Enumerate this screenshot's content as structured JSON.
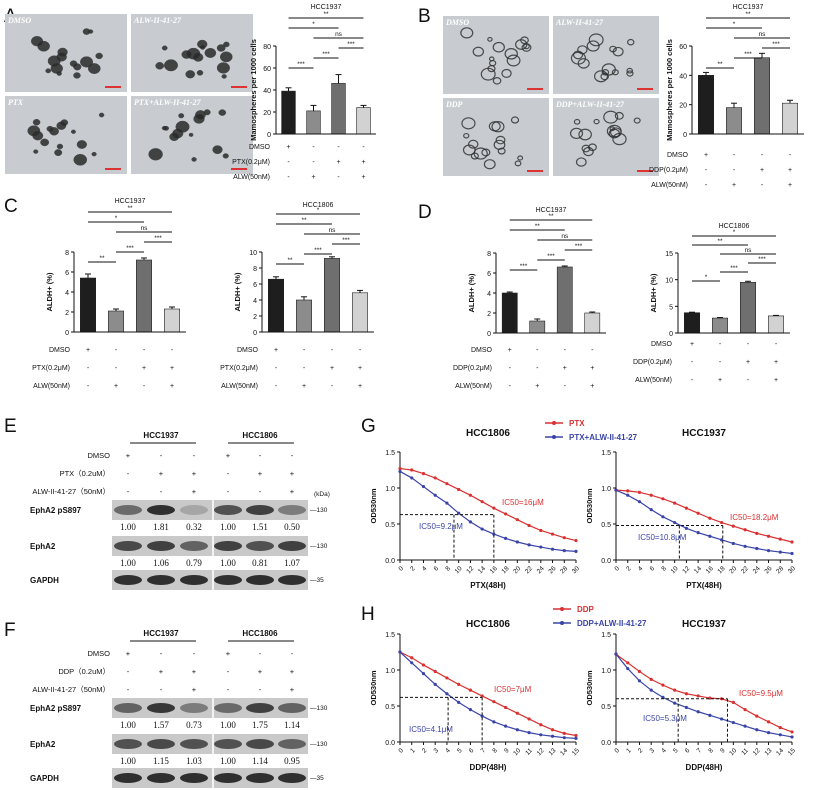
{
  "colors": {
    "dmso": "#1e1e1e",
    "alw": "#8c8c8c",
    "drug": "#6f6f6f",
    "combo": "#d2d2d2",
    "red": "#d93030",
    "blue": "#3a44a8",
    "micro_bg": "#c8ccd0"
  },
  "panel_letters": [
    "A",
    "B",
    "C",
    "D",
    "E",
    "F",
    "G",
    "H"
  ],
  "panelA": {
    "images": [
      {
        "label": "DMSO"
      },
      {
        "label": "ALW-II-41-27"
      },
      {
        "label": "PTX"
      },
      {
        "label": "PTX+ALW-II-41-27"
      }
    ],
    "chart_data": {
      "type": "bar",
      "title": "HCC1937",
      "ylabel": "Mamospheres per 1000 cells",
      "ylim": [
        0,
        80
      ],
      "yticks": [
        "0",
        "20",
        "40",
        "60",
        "80"
      ],
      "categories": [
        "DMSO",
        "ALW",
        "PTX",
        "PTX+ALW"
      ],
      "values": [
        39,
        21,
        46,
        24
      ],
      "errors": [
        3,
        5,
        8,
        2
      ],
      "rows": [
        {
          "label": "DMSO",
          "marks": [
            "+",
            "-",
            "-",
            "-"
          ]
        },
        {
          "label": "PTX(0.2μM)",
          "marks": [
            "-",
            "-",
            "+",
            "+"
          ]
        },
        {
          "label": "ALW(50nM)",
          "marks": [
            "-",
            "+",
            "-",
            "+"
          ]
        }
      ],
      "sig": [
        {
          "a": 0,
          "b": 3,
          "text": "**"
        },
        {
          "a": 0,
          "b": 2,
          "text": "*"
        },
        {
          "a": 1,
          "b": 3,
          "text": "ns"
        },
        {
          "a": 2,
          "b": 3,
          "text": "***"
        },
        {
          "a": 1,
          "b": 2,
          "text": "***"
        },
        {
          "a": 0,
          "b": 1,
          "text": "***"
        }
      ]
    }
  },
  "panelB": {
    "images": [
      {
        "label": "DMSO"
      },
      {
        "label": "ALW-II-41-27"
      },
      {
        "label": "DDP"
      },
      {
        "label": "DDP+ALW-II-41-27"
      }
    ],
    "chart_data": {
      "type": "bar",
      "title": "HCC1937",
      "ylabel": "Mamospheres per 1000 cells",
      "ylim": [
        0,
        60
      ],
      "yticks": [
        "0",
        "20",
        "40",
        "60"
      ],
      "categories": [
        "DMSO",
        "ALW",
        "DDP",
        "DDP+ALW"
      ],
      "values": [
        40,
        18,
        52,
        21
      ],
      "errors": [
        2,
        3,
        3,
        2
      ],
      "rows": [
        {
          "label": "DMSO",
          "marks": [
            "+",
            "-",
            "-",
            "-"
          ]
        },
        {
          "label": "DDP(0.2μM)",
          "marks": [
            "-",
            "-",
            "+",
            "+"
          ]
        },
        {
          "label": "ALW(50nM)",
          "marks": [
            "-",
            "+",
            "-",
            "+"
          ]
        }
      ],
      "sig": [
        {
          "a": 0,
          "b": 3,
          "text": "**"
        },
        {
          "a": 0,
          "b": 2,
          "text": "*"
        },
        {
          "a": 1,
          "b": 3,
          "text": "ns"
        },
        {
          "a": 2,
          "b": 3,
          "text": "***"
        },
        {
          "a": 1,
          "b": 2,
          "text": "***"
        },
        {
          "a": 0,
          "b": 1,
          "text": "**"
        }
      ]
    }
  },
  "panelC": [
    {
      "type": "bar",
      "title": "HCC1937",
      "ylabel": "ALDH+ (%)",
      "ylim": [
        0,
        8
      ],
      "yticks": [
        "0",
        "2",
        "4",
        "6",
        "8"
      ],
      "categories": [
        "DMSO",
        "ALW",
        "PTX",
        "PTX+ALW"
      ],
      "values": [
        5.4,
        2.1,
        7.2,
        2.3
      ],
      "errors": [
        0.4,
        0.2,
        0.2,
        0.2
      ],
      "rows": [
        {
          "label": "DMSO",
          "marks": [
            "+",
            "-",
            "-",
            "-"
          ]
        },
        {
          "label": "PTX(0.2μM)",
          "marks": [
            "-",
            "-",
            "+",
            "+"
          ]
        },
        {
          "label": "ALW(50nM)",
          "marks": [
            "-",
            "+",
            "-",
            "+"
          ]
        }
      ],
      "sig": [
        {
          "a": 0,
          "b": 3,
          "text": "**"
        },
        {
          "a": 0,
          "b": 2,
          "text": "*"
        },
        {
          "a": 1,
          "b": 3,
          "text": "ns"
        },
        {
          "a": 2,
          "b": 3,
          "text": "***"
        },
        {
          "a": 1,
          "b": 2,
          "text": "***"
        },
        {
          "a": 0,
          "b": 1,
          "text": "**"
        }
      ]
    },
    {
      "type": "bar",
      "title": "HCC1806",
      "ylabel": "ALDH+ (%)",
      "ylim": [
        0,
        10
      ],
      "yticks": [
        "0",
        "2",
        "4",
        "6",
        "8",
        "10"
      ],
      "categories": [
        "DMSO",
        "ALW",
        "PTX",
        "PTX+ALW"
      ],
      "values": [
        6.6,
        4.0,
        9.2,
        4.9
      ],
      "errors": [
        0.3,
        0.4,
        0.2,
        0.3
      ],
      "rows": [
        {
          "label": "DMSO",
          "marks": [
            "+",
            "-",
            "-",
            "-"
          ]
        },
        {
          "label": "PTX(0.2μM)",
          "marks": [
            "-",
            "-",
            "+",
            "+"
          ]
        },
        {
          "label": "ALW(50nM)",
          "marks": [
            "-",
            "+",
            "-",
            "+"
          ]
        }
      ],
      "sig": [
        {
          "a": 0,
          "b": 3,
          "text": "*"
        },
        {
          "a": 0,
          "b": 2,
          "text": "**"
        },
        {
          "a": 1,
          "b": 3,
          "text": "ns"
        },
        {
          "a": 2,
          "b": 3,
          "text": "***"
        },
        {
          "a": 1,
          "b": 2,
          "text": "***"
        },
        {
          "a": 0,
          "b": 1,
          "text": "**"
        }
      ]
    }
  ],
  "panelD": [
    {
      "type": "bar",
      "title": "HCC1937",
      "ylabel": "ALDH+ (%)",
      "ylim": [
        0,
        8
      ],
      "yticks": [
        "0",
        "2",
        "4",
        "6",
        "8"
      ],
      "categories": [
        "DMSO",
        "ALW",
        "DDP",
        "DDP+ALW"
      ],
      "values": [
        4.0,
        1.2,
        6.6,
        2.0
      ],
      "errors": [
        0.1,
        0.2,
        0.1,
        0.1
      ],
      "rows": [
        {
          "label": "DMSO",
          "marks": [
            "+",
            "-",
            "-",
            "-"
          ]
        },
        {
          "label": "DDP(0.2μM)",
          "marks": [
            "-",
            "-",
            "+",
            "+"
          ]
        },
        {
          "label": "ALW(50nM)",
          "marks": [
            "-",
            "+",
            "-",
            "+"
          ]
        }
      ],
      "sig": [
        {
          "a": 0,
          "b": 3,
          "text": "**"
        },
        {
          "a": 0,
          "b": 2,
          "text": "**"
        },
        {
          "a": 1,
          "b": 3,
          "text": "ns"
        },
        {
          "a": 2,
          "b": 3,
          "text": "***"
        },
        {
          "a": 1,
          "b": 2,
          "text": "***"
        },
        {
          "a": 0,
          "b": 1,
          "text": "***"
        }
      ]
    },
    {
      "type": "bar",
      "title": "HCC1806",
      "ylabel": "ALDH+ (%)",
      "ylim": [
        0,
        15
      ],
      "yticks": [
        "0",
        "5",
        "10",
        "15"
      ],
      "categories": [
        "DMSO",
        "ALW",
        "DDP",
        "DDP+ALW"
      ],
      "values": [
        3.8,
        2.8,
        9.5,
        3.2
      ],
      "errors": [
        0.1,
        0.1,
        0.2,
        0.1
      ],
      "rows": [
        {
          "label": "DMSO",
          "marks": [
            "+",
            "-",
            "-",
            "-"
          ]
        },
        {
          "label": "DDP(0.2μM)",
          "marks": [
            "-",
            "-",
            "+",
            "+"
          ]
        },
        {
          "label": "ALW(50nM)",
          "marks": [
            "-",
            "+",
            "-",
            "+"
          ]
        }
      ],
      "sig": [
        {
          "a": 0,
          "b": 3,
          "text": "*"
        },
        {
          "a": 0,
          "b": 2,
          "text": "**"
        },
        {
          "a": 1,
          "b": 3,
          "text": "ns"
        },
        {
          "a": 2,
          "b": 3,
          "text": "***"
        },
        {
          "a": 1,
          "b": 2,
          "text": "***"
        },
        {
          "a": 0,
          "b": 1,
          "text": "*"
        }
      ]
    }
  ],
  "panelE": {
    "groups": [
      "HCC1937",
      "HCC1806"
    ],
    "rows": [
      {
        "label": "DMSO",
        "marks": [
          "+",
          "-",
          "-",
          "+",
          "-",
          "-"
        ]
      },
      {
        "label": "PTX（0.2uM）",
        "marks": [
          "-",
          "+",
          "+",
          "-",
          "+",
          "+"
        ]
      },
      {
        "label": "ALW-II-41-27（50nM）",
        "marks": [
          "-",
          "-",
          "+",
          "-",
          "-",
          "+"
        ]
      }
    ],
    "kda_label": "(kDa)",
    "blots": [
      {
        "name": "EphA2 pS897",
        "kda": "130",
        "intensity": [
          0.55,
          0.9,
          0.2,
          0.7,
          0.8,
          0.45
        ],
        "values": [
          "1.00",
          "1.81",
          "0.32",
          "1.00",
          "1.51",
          "0.50"
        ]
      },
      {
        "name": "EphA2",
        "kda": "130",
        "intensity": [
          0.75,
          0.8,
          0.6,
          0.8,
          0.7,
          0.8
        ],
        "values": [
          "1.00",
          "1.06",
          "0.79",
          "1.00",
          "0.81",
          "1.07"
        ]
      },
      {
        "name": "GAPDH",
        "kda": "35",
        "intensity": [
          0.9,
          0.9,
          0.9,
          0.9,
          0.9,
          0.9
        ],
        "values": []
      }
    ]
  },
  "panelF": {
    "groups": [
      "HCC1937",
      "HCC1806"
    ],
    "rows": [
      {
        "label": "DMSO",
        "marks": [
          "+",
          "-",
          "-",
          "+",
          "-",
          "-"
        ]
      },
      {
        "label": "DDP（0.2uM）",
        "marks": [
          "-",
          "+",
          "+",
          "-",
          "+",
          "+"
        ]
      },
      {
        "label": "ALW-II-41-27（50nM）",
        "marks": [
          "-",
          "-",
          "+",
          "-",
          "-",
          "+"
        ]
      }
    ],
    "kda_label": "",
    "blots": [
      {
        "name": "EphA2 pS897",
        "kda": "130",
        "intensity": [
          0.6,
          0.85,
          0.45,
          0.55,
          0.8,
          0.6
        ],
        "values": [
          "1.00",
          "1.57",
          "0.73",
          "1.00",
          "1.75",
          "1.14"
        ]
      },
      {
        "name": "EphA2",
        "kda": "130",
        "intensity": [
          0.7,
          0.75,
          0.7,
          0.7,
          0.75,
          0.6
        ],
        "values": [
          "1.00",
          "1.15",
          "1.03",
          "1.00",
          "1.14",
          "0.95"
        ]
      },
      {
        "name": "GAPDH",
        "kda": "35",
        "intensity": [
          0.9,
          0.9,
          0.9,
          0.9,
          0.9,
          0.9
        ],
        "values": []
      }
    ]
  },
  "panelG": {
    "legend": [
      {
        "name": "PTX",
        "color": "red"
      },
      {
        "name": "PTX+ALW-II-41-27",
        "color": "blue"
      }
    ],
    "charts": [
      {
        "type": "line",
        "title": "HCC1806",
        "xlabel": "PTX(48H)",
        "ylabel": "OD530nm",
        "xlim": [
          0,
          30
        ],
        "ylim": [
          0,
          1.5
        ],
        "x": [
          0,
          2,
          4,
          6,
          8,
          10,
          12,
          14,
          16,
          18,
          20,
          22,
          24,
          26,
          28,
          30
        ],
        "series": [
          {
            "name": "PTX",
            "color": "red",
            "values": [
              1.27,
              1.25,
              1.2,
              1.14,
              1.06,
              0.98,
              0.9,
              0.81,
              0.72,
              0.64,
              0.56,
              0.48,
              0.41,
              0.36,
              0.31,
              0.27
            ]
          },
          {
            "name": "PTX+ALW-II-41-27",
            "color": "blue",
            "values": [
              1.23,
              1.14,
              1.02,
              0.9,
              0.79,
              0.65,
              0.53,
              0.43,
              0.36,
              0.3,
              0.25,
              0.21,
              0.18,
              0.15,
              0.13,
              0.12
            ]
          }
        ],
        "ic": [
          {
            "text": "IC50=16μM",
            "x": 16,
            "color": "red"
          },
          {
            "text": "IC50=9.2μM",
            "x": 9.2,
            "color": "blue"
          }
        ],
        "dash_y": 0.63
      },
      {
        "type": "line",
        "title": "HCC1937",
        "xlabel": "PTX(48H)",
        "ylabel": "OD530nm",
        "xlim": [
          0,
          30
        ],
        "ylim": [
          0,
          1.5
        ],
        "x": [
          0,
          2,
          4,
          6,
          8,
          10,
          12,
          14,
          16,
          18,
          20,
          22,
          24,
          26,
          28,
          30
        ],
        "series": [
          {
            "name": "PTX",
            "color": "red",
            "values": [
              0.97,
              0.96,
              0.94,
              0.9,
              0.85,
              0.79,
              0.72,
              0.65,
              0.58,
              0.52,
              0.47,
              0.42,
              0.37,
              0.33,
              0.29,
              0.25
            ]
          },
          {
            "name": "PTX+ALW-II-41-27",
            "color": "blue",
            "values": [
              0.97,
              0.9,
              0.81,
              0.7,
              0.6,
              0.52,
              0.44,
              0.38,
              0.33,
              0.28,
              0.23,
              0.19,
              0.16,
              0.13,
              0.11,
              0.09
            ]
          }
        ],
        "ic": [
          {
            "text": "IC50=18.2μM",
            "x": 18.2,
            "color": "red"
          },
          {
            "text": "IC50=10.8μM",
            "x": 10.8,
            "color": "blue"
          }
        ],
        "dash_y": 0.48
      }
    ]
  },
  "panelH": {
    "legend": [
      {
        "name": "DDP",
        "color": "red"
      },
      {
        "name": "DDP+ALW-II-41-27",
        "color": "blue"
      }
    ],
    "charts": [
      {
        "type": "line",
        "title": "HCC1806",
        "xlabel": "DDP(48H)",
        "ylabel": "OD530nm",
        "xlim": [
          0,
          15
        ],
        "ylim": [
          0,
          1.5
        ],
        "x": [
          0,
          1,
          2,
          3,
          4,
          5,
          6,
          7,
          8,
          9,
          10,
          11,
          12,
          13,
          14,
          15
        ],
        "series": [
          {
            "name": "DDP",
            "color": "red",
            "values": [
              1.25,
              1.17,
              1.07,
              0.98,
              0.89,
              0.8,
              0.72,
              0.64,
              0.56,
              0.48,
              0.4,
              0.32,
              0.24,
              0.17,
              0.12,
              0.09
            ]
          },
          {
            "name": "DDP+ALW-II-41-27",
            "color": "blue",
            "values": [
              1.25,
              1.1,
              0.95,
              0.8,
              0.67,
              0.55,
              0.45,
              0.36,
              0.28,
              0.22,
              0.17,
              0.13,
              0.1,
              0.08,
              0.06,
              0.05
            ]
          }
        ],
        "ic": [
          {
            "text": "IC50=7μM",
            "x": 7,
            "color": "red"
          },
          {
            "text": "IC50=4.1μM",
            "x": 4.1,
            "color": "blue"
          }
        ],
        "dash_y": 0.62
      },
      {
        "type": "line",
        "title": "HCC1937",
        "xlabel": "DDP(48H)",
        "ylabel": "OD530nm",
        "xlim": [
          0,
          15
        ],
        "ylim": [
          0,
          1.5
        ],
        "x": [
          0,
          1,
          2,
          3,
          4,
          5,
          6,
          7,
          8,
          9,
          10,
          11,
          12,
          13,
          14,
          15
        ],
        "series": [
          {
            "name": "DDP",
            "color": "red",
            "values": [
              1.22,
              1.1,
              0.98,
              0.87,
              0.79,
              0.72,
              0.67,
              0.64,
              0.61,
              0.6,
              0.55,
              0.45,
              0.36,
              0.28,
              0.2,
              0.14
            ]
          },
          {
            "name": "DDP+ALW-II-41-27",
            "color": "blue",
            "values": [
              1.22,
              1.02,
              0.85,
              0.72,
              0.62,
              0.54,
              0.48,
              0.42,
              0.37,
              0.32,
              0.27,
              0.22,
              0.17,
              0.13,
              0.1,
              0.07
            ]
          }
        ],
        "ic": [
          {
            "text": "IC50=9.5μM",
            "x": 9.5,
            "color": "red"
          },
          {
            "text": "IC50=5.3μM",
            "x": 5.3,
            "color": "blue"
          }
        ],
        "dash_y": 0.6
      }
    ]
  }
}
